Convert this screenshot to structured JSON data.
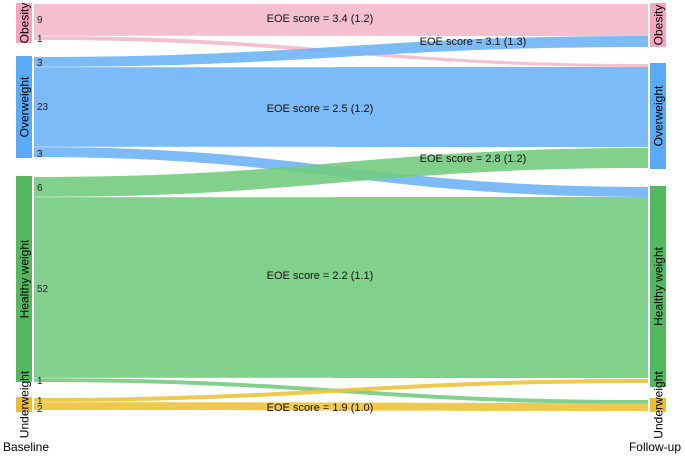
{
  "colors": {
    "obesity": "#f3a6bd",
    "overweight": "#5aaaf6",
    "healthy": "#55b85e",
    "underweight": "#e8bd33",
    "flow_obesity": "#f3b9c9",
    "flow_overweight": "#6fb4f7",
    "flow_healthy": "#73cc7f",
    "flow_underweight": "#edc23b"
  },
  "labels": {
    "baseline": "Baseline",
    "followup": "Follow-up"
  },
  "nodes": {
    "left": [
      {
        "id": "ob-l",
        "name": "Obesity",
        "color": "obesity"
      },
      {
        "id": "ov-l",
        "name": "Overweight",
        "color": "overweight"
      },
      {
        "id": "hw-l",
        "name": "Healthy weight",
        "color": "healthy"
      },
      {
        "id": "uw-l",
        "name": "Underweight",
        "color": "underweight"
      }
    ],
    "right": [
      {
        "id": "ob-r",
        "name": "Obesity",
        "color": "obesity"
      },
      {
        "id": "ov-r",
        "name": "Overweight",
        "color": "overweight"
      },
      {
        "id": "hw-r",
        "name": "Healthy weight",
        "color": "healthy"
      },
      {
        "id": "uw-r",
        "name": "Underweight",
        "color": "underweight"
      }
    ]
  },
  "flows": [
    {
      "from": "Obesity",
      "to": "Obesity",
      "count": "9",
      "color": "flow_obesity"
    },
    {
      "from": "Obesity",
      "to": "Overweight",
      "count": "1",
      "color": "flow_obesity"
    },
    {
      "from": "Overweight",
      "to": "Obesity",
      "count": "3",
      "color": "flow_overweight"
    },
    {
      "from": "Overweight",
      "to": "Overweight",
      "count": "23",
      "color": "flow_overweight"
    },
    {
      "from": "Overweight",
      "to": "Healthy weight",
      "count": "3",
      "color": "flow_overweight"
    },
    {
      "from": "Healthy weight",
      "to": "Overweight",
      "count": "6",
      "color": "flow_healthy"
    },
    {
      "from": "Healthy weight",
      "to": "Healthy weight",
      "count": "52",
      "color": "flow_healthy"
    },
    {
      "from": "Healthy weight",
      "to": "Underweight",
      "count": "1",
      "color": "flow_healthy"
    },
    {
      "from": "Underweight",
      "to": "Healthy weight",
      "count": "1",
      "color": "flow_underweight"
    },
    {
      "from": "Underweight",
      "to": "Underweight",
      "count": "2",
      "color": "flow_underweight"
    }
  ],
  "eoe_labels": [
    {
      "text": "EOE score = 3.4 (1.2)"
    },
    {
      "text": "EOE score = 3.1 (1.3)"
    },
    {
      "text": "EOE score = 2.5 (1.2)"
    },
    {
      "text": "EOE score = 2.8 (1.2)"
    },
    {
      "text": "EOE score = 2.2 (1.1)"
    },
    {
      "text": "EOE score = 1.9 (1.0)"
    }
  ]
}
